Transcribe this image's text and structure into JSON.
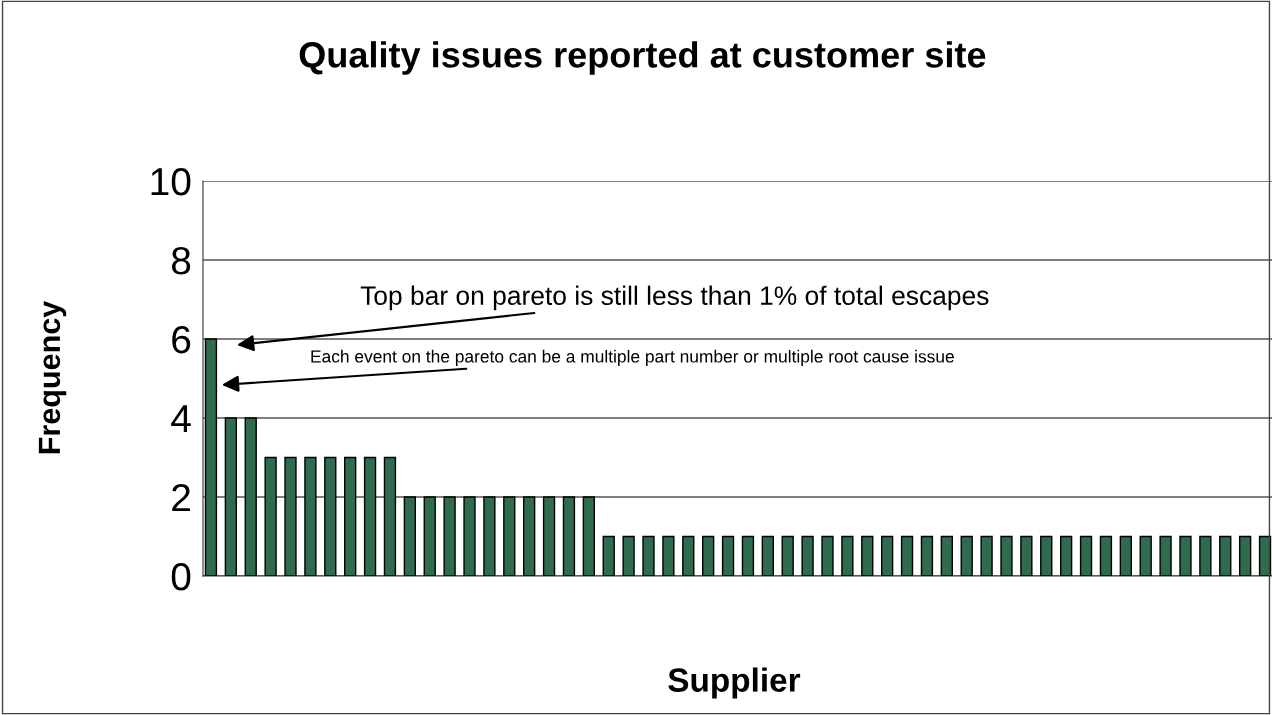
{
  "chart_data": {
    "type": "bar",
    "title": "Quality issues reported at customer site",
    "xlabel": "Supplier",
    "ylabel": "Frequency",
    "categories": [
      null,
      null,
      null,
      null,
      null,
      null,
      null,
      null,
      null,
      null,
      null,
      null,
      null,
      null,
      null,
      null,
      null,
      null,
      null,
      null,
      null,
      null,
      null,
      null,
      null,
      null,
      null,
      null,
      null,
      null,
      null,
      null,
      null,
      null,
      null,
      null,
      null,
      null,
      null,
      null,
      null,
      null,
      null,
      null,
      null,
      null,
      null,
      null,
      null,
      null,
      null,
      null,
      null,
      null
    ],
    "values": [
      6,
      4,
      4,
      3,
      3,
      3,
      3,
      3,
      3,
      3,
      2,
      2,
      2,
      2,
      2,
      2,
      2,
      2,
      2,
      2,
      1,
      1,
      1,
      1,
      1,
      1,
      1,
      1,
      1,
      1,
      1,
      1,
      1,
      1,
      1,
      1,
      1,
      1,
      1,
      1,
      1,
      1,
      1,
      1,
      1,
      1,
      1,
      1,
      1,
      1,
      1,
      1,
      1,
      1
    ],
    "color": "#2e6b4f",
    "ylim": [
      0,
      10
    ],
    "yticks": [
      0,
      2,
      4,
      6,
      8,
      10
    ],
    "grid": "y",
    "annotations": [
      "Top bar on pareto is still less than 1% of total escapes",
      "Each event on the pareto can be a multiple part number or multiple root cause issue"
    ]
  }
}
